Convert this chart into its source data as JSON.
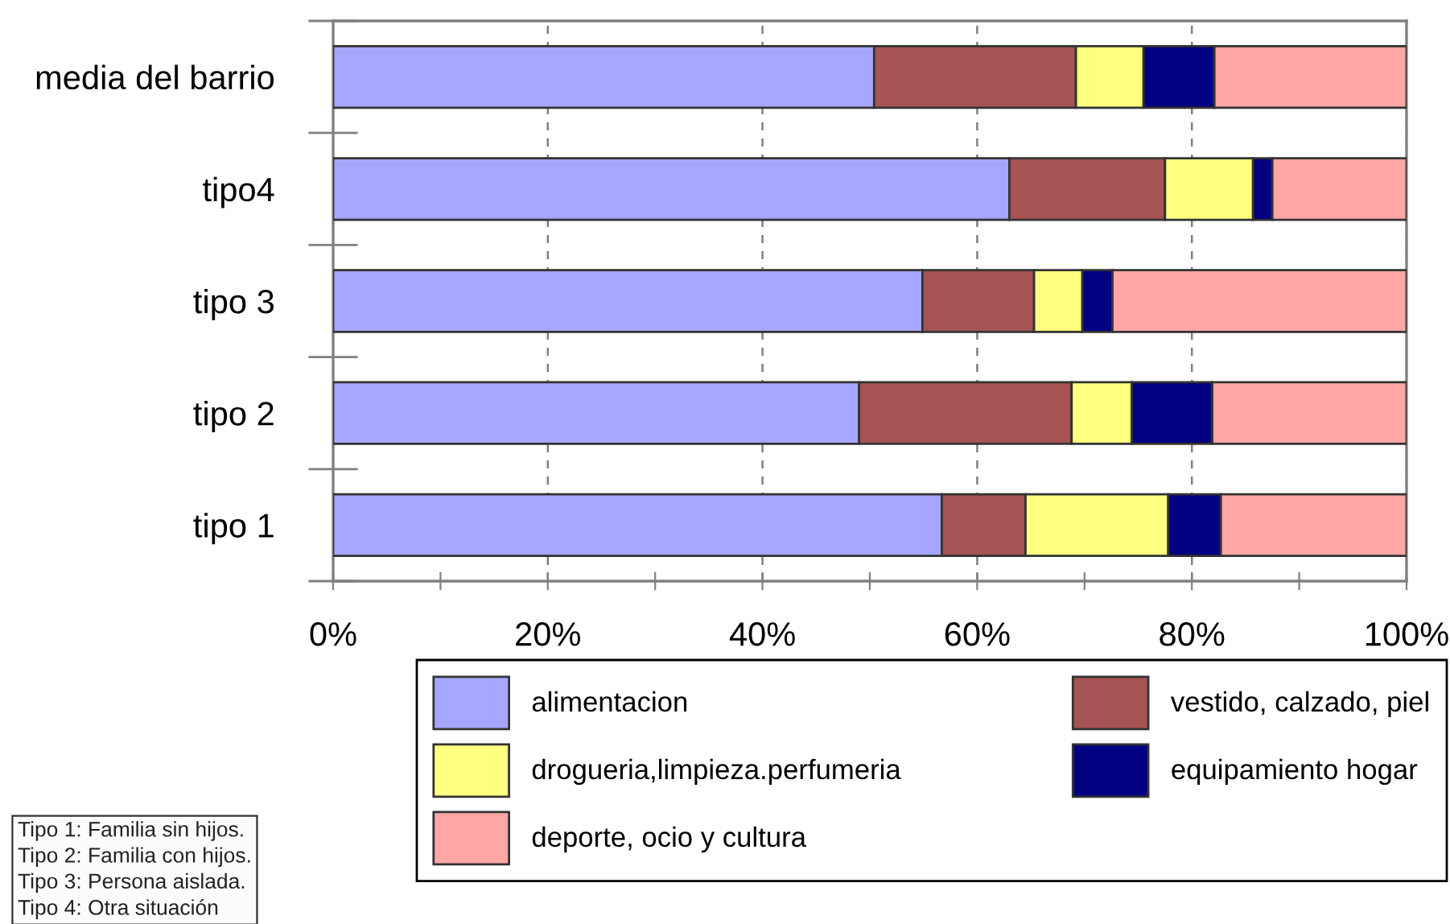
{
  "chart_data": {
    "type": "bar",
    "orientation": "horizontal",
    "stacked": true,
    "categories": [
      "media del barrio",
      "tipo4",
      "tipo 3",
      "tipo 2",
      "tipo 1"
    ],
    "series": [
      {
        "name": "alimentacion",
        "color": "#a6a6ff",
        "values": [
          50.4,
          63.0,
          54.9,
          49.0,
          56.7
        ]
      },
      {
        "name": "vestido, calzado, piel",
        "color": "#a65353",
        "values": [
          18.8,
          14.5,
          10.4,
          19.8,
          7.8
        ]
      },
      {
        "name": "drogueria,limpieza.perfumeria",
        "color": "#ffff80",
        "values": [
          6.3,
          8.2,
          4.5,
          5.6,
          13.3
        ]
      },
      {
        "name": "equipamiento hogar",
        "color": "#000080",
        "values": [
          6.6,
          1.8,
          2.8,
          7.5,
          4.9
        ]
      },
      {
        "name": "deporte, ocio y cultura",
        "color": "#ffa6a6",
        "values": [
          17.9,
          12.5,
          27.4,
          18.1,
          17.3
        ]
      }
    ],
    "xlim": [
      0,
      100
    ],
    "xticks": [
      {
        "value": 0,
        "label": "0%"
      },
      {
        "value": 10,
        "label": null
      },
      {
        "value": 20,
        "label": "20%"
      },
      {
        "value": 30,
        "label": null
      },
      {
        "value": 40,
        "label": "40%"
      },
      {
        "value": 50,
        "label": null
      },
      {
        "value": 60,
        "label": "60%"
      },
      {
        "value": 70,
        "label": null
      },
      {
        "value": 80,
        "label": "80%"
      },
      {
        "value": 90,
        "label": null
      },
      {
        "value": 100,
        "label": "100%"
      }
    ],
    "grid": "x",
    "legend": "bottom",
    "annotations": [
      "Tipo 1: Familia sin hijos.",
      "Tipo 2: Familia con hijos.",
      "Tipo 3: Persona aislada.",
      "Tipo 4: Otra situación"
    ]
  }
}
